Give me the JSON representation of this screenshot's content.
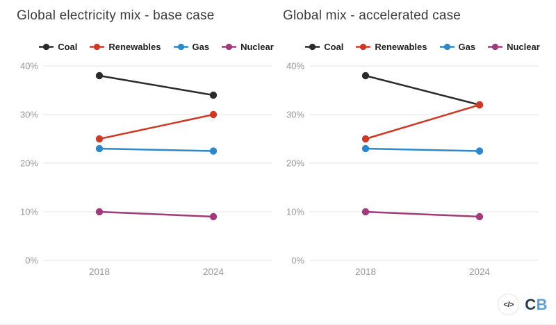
{
  "chart_data": [
    {
      "type": "line",
      "title": "Global electricity mix - base case",
      "categories": [
        "2018",
        "2024"
      ],
      "x": [
        2018,
        2024
      ],
      "series": [
        {
          "name": "Coal",
          "color": "#2b2b2b",
          "values": [
            38,
            34
          ]
        },
        {
          "name": "Renewables",
          "color": "#cc3a25",
          "values": [
            25,
            30
          ]
        },
        {
          "name": "Gas",
          "color": "#2d87c9",
          "values": [
            23,
            22.5
          ]
        },
        {
          "name": "Nuclear",
          "color": "#a03a7b",
          "values": [
            10,
            9
          ]
        }
      ],
      "ylim": [
        0,
        40
      ],
      "yticks": [
        0,
        10,
        20,
        30,
        40
      ],
      "ytick_labels": [
        "0%",
        "10%",
        "20%",
        "30%",
        "40%"
      ],
      "xlabel": "",
      "ylabel": "",
      "grid": true,
      "legend_position": "top"
    },
    {
      "type": "line",
      "title": "Global mix - accelerated case",
      "categories": [
        "2018",
        "2024"
      ],
      "x": [
        2018,
        2024
      ],
      "series": [
        {
          "name": "Coal",
          "color": "#2b2b2b",
          "values": [
            38,
            32
          ]
        },
        {
          "name": "Renewables",
          "color": "#cc3a25",
          "values": [
            25,
            32
          ]
        },
        {
          "name": "Gas",
          "color": "#2d87c9",
          "values": [
            23,
            22.5
          ]
        },
        {
          "name": "Nuclear",
          "color": "#a03a7b",
          "values": [
            10,
            9
          ]
        }
      ],
      "ylim": [
        0,
        40
      ],
      "yticks": [
        0,
        10,
        20,
        30,
        40
      ],
      "ytick_labels": [
        "0%",
        "10%",
        "20%",
        "30%",
        "40%"
      ],
      "xlabel": "",
      "ylabel": "",
      "grid": true,
      "legend_position": "top"
    }
  ],
  "style": {
    "grid_color": "#e6e6e6",
    "axis_text_color": "#969696",
    "title_color": "#3c3c3c"
  },
  "footer": {
    "code_icon": "</>",
    "logo": {
      "letters": [
        {
          "text": "C",
          "color": "#243b4e"
        },
        {
          "text": "B",
          "color": "#5e9fd6"
        }
      ]
    }
  }
}
